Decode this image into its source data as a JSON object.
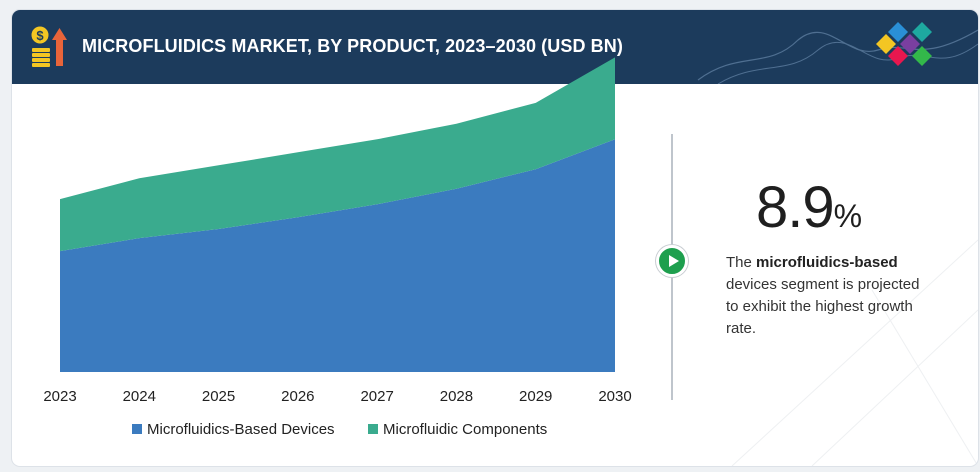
{
  "header": {
    "title": "MICROFLUIDICS MARKET, BY PRODUCT, 2023–2030 (USD BN)",
    "icon": "money-growth-icon",
    "logo": "diamond-logo"
  },
  "colors": {
    "header_bg": "#1c3b5c",
    "devices": "#3b7bbf",
    "components": "#3aab8e",
    "accent_green": "#1e9f4e"
  },
  "chart_data": {
    "type": "area",
    "stacked": true,
    "categories": [
      "2023",
      "2024",
      "2025",
      "2026",
      "2027",
      "2028",
      "2029",
      "2030"
    ],
    "series": [
      {
        "name": "Microfluidics-Based Devices",
        "values": [
          9.3,
          10.3,
          11.0,
          11.9,
          12.9,
          14.1,
          15.6,
          17.9
        ]
      },
      {
        "name": "Microfluidic Components",
        "values": [
          4.0,
          4.6,
          4.9,
          5.0,
          5.0,
          5.0,
          5.1,
          6.3
        ]
      }
    ],
    "ylim": [
      0,
      24
    ],
    "grid": false,
    "legend": "bottom",
    "title": "MICROFLUIDICS MARKET, BY PRODUCT, 2023–2030 (USD BN)"
  },
  "stat": {
    "value": "8.9",
    "unit": "%",
    "desc_prefix": "The ",
    "desc_bold": "microfluidics-based",
    "desc_rest": " devices segment is projected to exhibit the highest growth rate."
  }
}
